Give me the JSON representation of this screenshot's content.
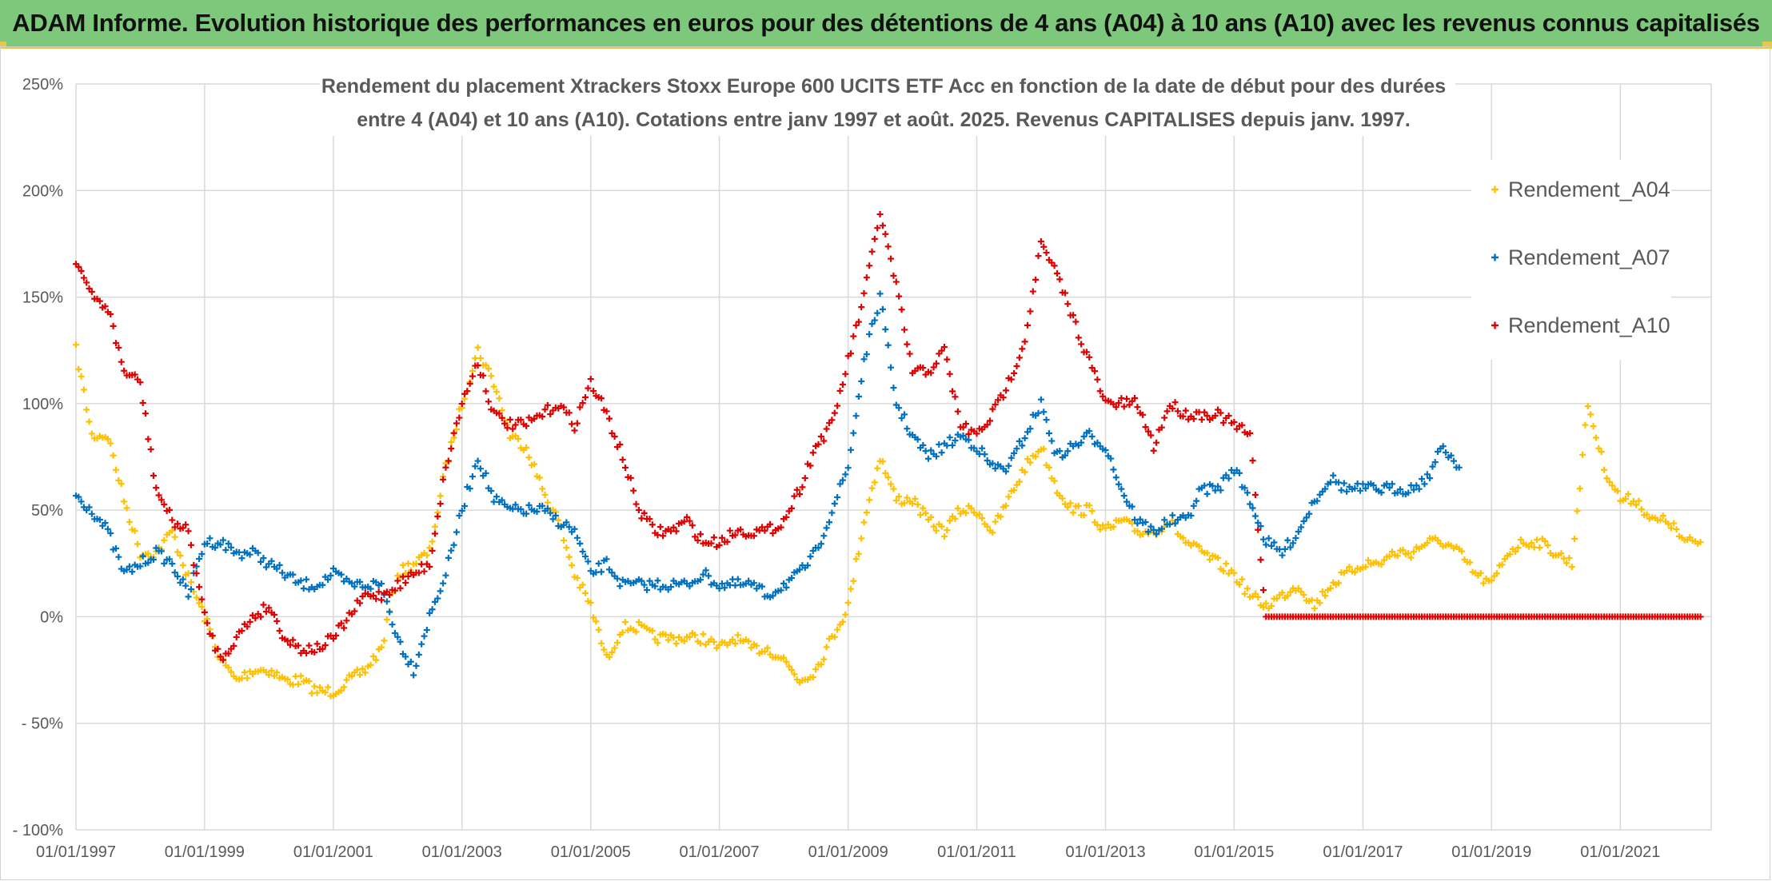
{
  "banner": {
    "title": "ADAM Informe. Evolution historique des performances en euros pour des détentions de 4 ans (A04) à 10 ans (A10) avec les revenus connus capitalisés"
  },
  "colors": {
    "banner_bg": "#7dc87a",
    "accent": "#e8c84a",
    "A04": "#ffc000",
    "A07": "#0070c0",
    "A10": "#e00000",
    "grid": "#d9d9d9"
  },
  "chart_data": {
    "type": "scatter",
    "title_line1": "Rendement du placement Xtrackers Stoxx Europe 600 UCITS ETF Acc en fonction de la date de début pour des durées",
    "title_line2": "entre 4 (A04) et 10 ans (A10). Cotations entre janv 1997 et août. 2025. Revenus CAPITALISES depuis janv. 1997.",
    "xlabel": "",
    "ylabel": "",
    "x_type": "date",
    "xlim": [
      "1997-01-01",
      "2022-06-01"
    ],
    "ylim": [
      -100,
      250
    ],
    "y_ticks": [
      -100,
      -50,
      0,
      50,
      100,
      150,
      200,
      250
    ],
    "y_tick_labels": [
      "- 100%",
      "- 50%",
      "0%",
      "50%",
      "100%",
      "150%",
      "200%",
      "250%"
    ],
    "x_ticks": [
      "1997-01-01",
      "1999-01-01",
      "2001-01-01",
      "2003-01-01",
      "2005-01-01",
      "2007-01-01",
      "2009-01-01",
      "2011-01-01",
      "2013-01-01",
      "2015-01-01",
      "2017-01-01",
      "2019-01-01",
      "2021-01-01"
    ],
    "x_tick_labels": [
      "01/01/1997",
      "01/01/1999",
      "01/01/2001",
      "01/01/2003",
      "01/01/2005",
      "01/01/2007",
      "01/01/2009",
      "01/01/2011",
      "01/01/2013",
      "01/01/2015",
      "01/01/2017",
      "01/01/2019",
      "01/01/2021"
    ],
    "grid": "both",
    "legend_position": "right",
    "marker": "+",
    "series": [
      {
        "name": "Rendement_A04",
        "color": "#ffc000",
        "x": [
          "1997-01-01",
          "1997-04-01",
          "1997-07-01",
          "1997-10-01",
          "1998-01-01",
          "1998-04-01",
          "1998-07-01",
          "1998-10-01",
          "1999-01-01",
          "1999-04-01",
          "1999-07-01",
          "1999-10-01",
          "2000-01-01",
          "2000-04-01",
          "2000-07-01",
          "2000-10-01",
          "2001-01-01",
          "2001-04-01",
          "2001-07-01",
          "2001-10-01",
          "2002-01-01",
          "2002-04-01",
          "2002-07-01",
          "2002-10-01",
          "2003-01-01",
          "2003-04-01",
          "2003-07-01",
          "2003-10-01",
          "2004-01-01",
          "2004-04-01",
          "2004-07-01",
          "2004-10-01",
          "2005-01-01",
          "2005-04-01",
          "2005-07-01",
          "2005-10-01",
          "2006-01-01",
          "2006-04-01",
          "2006-07-01",
          "2006-10-01",
          "2007-01-01",
          "2007-04-01",
          "2007-07-01",
          "2007-10-01",
          "2008-01-01",
          "2008-04-01",
          "2008-07-01",
          "2008-10-01",
          "2009-01-01",
          "2009-04-01",
          "2009-07-01",
          "2009-10-01",
          "2010-01-01",
          "2010-04-01",
          "2010-07-01",
          "2010-10-01",
          "2011-01-01",
          "2011-04-01",
          "2011-07-01",
          "2011-10-01",
          "2012-01-01",
          "2012-04-01",
          "2012-07-01",
          "2012-10-01",
          "2013-01-01",
          "2013-04-01",
          "2013-07-01",
          "2013-10-01",
          "2014-01-01",
          "2014-04-01",
          "2014-07-01",
          "2014-10-01",
          "2015-01-01",
          "2015-04-01",
          "2015-07-01",
          "2015-10-01",
          "2016-01-01",
          "2016-04-01",
          "2016-07-01",
          "2016-10-01",
          "2017-01-01",
          "2017-04-01",
          "2017-07-01",
          "2017-10-01",
          "2018-01-01",
          "2018-04-01",
          "2018-07-01",
          "2018-10-01",
          "2019-01-01",
          "2019-04-01",
          "2019-07-01",
          "2019-10-01",
          "2020-01-01",
          "2020-04-01",
          "2020-07-01",
          "2020-10-01",
          "2021-01-01",
          "2021-04-01",
          "2021-07-01",
          "2021-10-01",
          "2022-01-01",
          "2022-04-01"
        ],
        "y": [
          125,
          85,
          85,
          55,
          30,
          30,
          40,
          18,
          0,
          -20,
          -30,
          -25,
          -25,
          -30,
          -30,
          -35,
          -35,
          -30,
          -25,
          -15,
          20,
          25,
          30,
          70,
          100,
          125,
          110,
          85,
          80,
          60,
          45,
          20,
          5,
          -20,
          -5,
          -5,
          -10,
          -10,
          -10,
          -10,
          -15,
          -10,
          -15,
          -15,
          -20,
          -30,
          -25,
          -10,
          5,
          45,
          75,
          55,
          55,
          45,
          40,
          50,
          50,
          40,
          55,
          70,
          80,
          60,
          50,
          50,
          40,
          45,
          40,
          40,
          45,
          35,
          30,
          25,
          20,
          10,
          5,
          10,
          15,
          5,
          15,
          20,
          25,
          25,
          30,
          30,
          35,
          35,
          30,
          20,
          15,
          30,
          35,
          35,
          30,
          25,
          100,
          70,
          55,
          55,
          45,
          45,
          35,
          35
        ]
      },
      {
        "name": "Rendement_A07",
        "color": "#0070c0",
        "x": [
          "1997-01-01",
          "1997-04-01",
          "1997-07-01",
          "1997-10-01",
          "1998-01-01",
          "1998-04-01",
          "1998-07-01",
          "1998-10-01",
          "1999-01-01",
          "1999-04-01",
          "1999-07-01",
          "1999-10-01",
          "2000-01-01",
          "2000-04-01",
          "2000-07-01",
          "2000-10-01",
          "2001-01-01",
          "2001-04-01",
          "2001-07-01",
          "2001-10-01",
          "2002-01-01",
          "2002-04-01",
          "2002-07-01",
          "2002-10-01",
          "2003-01-01",
          "2003-04-01",
          "2003-07-01",
          "2003-10-01",
          "2004-01-01",
          "2004-04-01",
          "2004-07-01",
          "2004-10-01",
          "2005-01-01",
          "2005-04-01",
          "2005-07-01",
          "2005-10-01",
          "2006-01-01",
          "2006-04-01",
          "2006-07-01",
          "2006-10-01",
          "2007-01-01",
          "2007-04-01",
          "2007-07-01",
          "2007-10-01",
          "2008-01-01",
          "2008-04-01",
          "2008-07-01",
          "2008-10-01",
          "2009-01-01",
          "2009-04-01",
          "2009-07-01",
          "2009-10-01",
          "2010-01-01",
          "2010-04-01",
          "2010-07-01",
          "2010-10-01",
          "2011-01-01",
          "2011-04-01",
          "2011-07-01",
          "2011-10-01",
          "2012-01-01",
          "2012-04-01",
          "2012-07-01",
          "2012-10-01",
          "2013-01-01",
          "2013-04-01",
          "2013-07-01",
          "2013-10-01",
          "2014-01-01",
          "2014-04-01",
          "2014-07-01",
          "2014-10-01",
          "2015-01-01",
          "2015-04-01",
          "2015-07-01",
          "2015-10-01",
          "2016-01-01",
          "2016-04-01",
          "2016-07-01",
          "2016-10-01",
          "2017-01-01",
          "2017-04-01",
          "2017-07-01",
          "2017-10-01",
          "2018-01-01",
          "2018-04-01",
          "2018-07-01"
        ],
        "y": [
          57,
          50,
          40,
          20,
          25,
          30,
          25,
          10,
          35,
          35,
          30,
          30,
          25,
          20,
          15,
          15,
          20,
          15,
          15,
          15,
          -10,
          -25,
          0,
          20,
          50,
          75,
          55,
          50,
          50,
          50,
          45,
          40,
          20,
          25,
          15,
          15,
          15,
          15,
          15,
          20,
          15,
          15,
          15,
          10,
          15,
          20,
          30,
          50,
          70,
          120,
          150,
          100,
          85,
          75,
          80,
          85,
          80,
          70,
          70,
          85,
          100,
          75,
          80,
          85,
          80,
          60,
          45,
          40,
          45,
          45,
          60,
          60,
          70,
          55,
          35,
          30,
          40,
          55,
          65,
          60,
          60,
          60,
          60,
          60,
          65,
          80,
          70
        ]
      },
      {
        "name": "Rendement_A10",
        "color": "#e00000",
        "x": [
          "1997-01-01",
          "1997-04-01",
          "1997-07-01",
          "1997-10-01",
          "1998-01-01",
          "1998-04-01",
          "1998-07-01",
          "1998-10-01",
          "1999-01-01",
          "1999-04-01",
          "1999-07-01",
          "1999-10-01",
          "2000-01-01",
          "2000-04-01",
          "2000-07-01",
          "2000-10-01",
          "2001-01-01",
          "2001-04-01",
          "2001-07-01",
          "2001-10-01",
          "2002-01-01",
          "2002-04-01",
          "2002-07-01",
          "2002-10-01",
          "2003-01-01",
          "2003-04-01",
          "2003-07-01",
          "2003-10-01",
          "2004-01-01",
          "2004-04-01",
          "2004-07-01",
          "2004-10-01",
          "2005-01-01",
          "2005-04-01",
          "2005-07-01",
          "2005-10-01",
          "2006-01-01",
          "2006-04-01",
          "2006-07-01",
          "2006-10-01",
          "2007-01-01",
          "2007-04-01",
          "2007-07-01",
          "2007-10-01",
          "2008-01-01",
          "2008-04-01",
          "2008-07-01",
          "2008-10-01",
          "2009-01-01",
          "2009-04-01",
          "2009-07-01",
          "2009-10-01",
          "2010-01-01",
          "2010-04-01",
          "2010-07-01",
          "2010-10-01",
          "2011-01-01",
          "2011-04-01",
          "2011-07-01",
          "2011-10-01",
          "2012-01-01",
          "2012-04-01",
          "2012-07-01",
          "2012-10-01",
          "2013-01-01",
          "2013-04-01",
          "2013-07-01",
          "2013-10-01",
          "2014-01-01",
          "2014-04-01",
          "2014-07-01",
          "2014-10-01",
          "2015-01-01",
          "2015-04-01",
          "2015-07-01",
          "2015-10-01",
          "2016-01-01",
          "2016-04-01",
          "2016-07-01",
          "2016-10-01",
          "2017-01-01",
          "2017-04-01",
          "2017-07-01",
          "2017-10-01",
          "2018-01-01",
          "2018-04-01",
          "2018-07-01",
          "2018-10-01",
          "2019-01-01",
          "2019-04-01",
          "2019-07-01",
          "2019-10-01",
          "2020-01-01",
          "2020-04-01",
          "2020-07-01",
          "2020-10-01",
          "2021-01-01",
          "2021-04-01",
          "2021-07-01",
          "2021-10-01",
          "2022-01-01",
          "2022-04-01"
        ],
        "y": [
          168,
          150,
          145,
          115,
          110,
          60,
          45,
          40,
          0,
          -20,
          -10,
          0,
          5,
          -10,
          -15,
          -15,
          -10,
          0,
          10,
          10,
          15,
          20,
          25,
          70,
          100,
          120,
          95,
          90,
          90,
          95,
          100,
          90,
          110,
          95,
          75,
          50,
          40,
          40,
          45,
          35,
          35,
          40,
          40,
          40,
          45,
          60,
          80,
          90,
          120,
          150,
          190,
          155,
          115,
          115,
          125,
          90,
          85,
          95,
          110,
          130,
          175,
          160,
          140,
          120,
          100,
          100,
          100,
          80,
          100,
          95,
          95,
          95,
          90,
          85,
          0,
          0,
          0,
          0,
          0,
          0,
          0,
          0,
          0,
          0,
          0,
          0,
          0,
          0,
          0,
          0,
          0,
          0,
          0,
          0,
          0,
          0,
          0,
          0,
          0,
          0,
          0,
          0
        ]
      }
    ]
  }
}
